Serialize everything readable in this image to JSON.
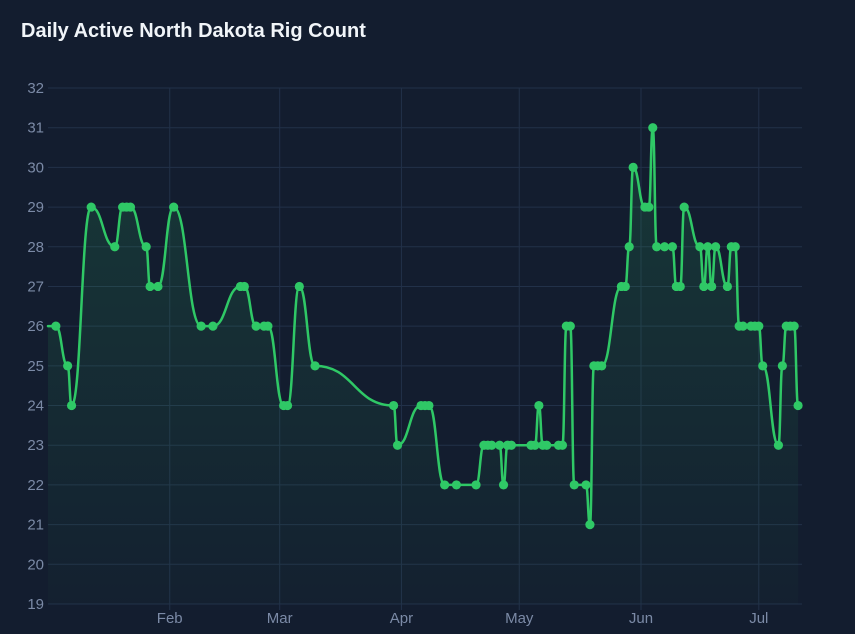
{
  "chart_data": {
    "type": "line",
    "title": "Daily Active North Dakota Rig Count",
    "xlabel": "",
    "ylabel": "",
    "ylim": [
      19,
      32
    ],
    "yticks": [
      19,
      20,
      21,
      22,
      23,
      24,
      25,
      26,
      27,
      28,
      29,
      30,
      31,
      32
    ],
    "xlim": [
      "2025-01-01",
      "2025-07-12"
    ],
    "xticks": [
      {
        "label": "Feb",
        "date": "2025-02-01"
      },
      {
        "label": "Mar",
        "date": "2025-03-01"
      },
      {
        "label": "Apr",
        "date": "2025-04-01"
      },
      {
        "label": "May",
        "date": "2025-05-01"
      },
      {
        "label": "Jun",
        "date": "2025-06-01"
      },
      {
        "label": "Jul",
        "date": "2025-07-01"
      }
    ],
    "grid": true,
    "legend": "none",
    "colors": {
      "line": "#2fc866",
      "point": "#2fc866",
      "grid": "#223149",
      "background": "#131d2f"
    },
    "series": [
      {
        "points": [
          [
            "2025-01-03",
            26
          ],
          [
            "2025-01-06",
            25
          ],
          [
            "2025-01-07",
            24
          ],
          [
            "2025-01-12",
            29
          ],
          [
            "2025-01-18",
            28
          ],
          [
            "2025-01-20",
            29
          ],
          [
            "2025-01-21",
            29
          ],
          [
            "2025-01-22",
            29
          ],
          [
            "2025-01-26",
            28
          ],
          [
            "2025-01-27",
            27
          ],
          [
            "2025-01-29",
            27
          ],
          [
            "2025-02-02",
            29
          ],
          [
            "2025-02-09",
            26
          ],
          [
            "2025-02-12",
            26
          ],
          [
            "2025-02-19",
            27
          ],
          [
            "2025-02-20",
            27
          ],
          [
            "2025-02-23",
            26
          ],
          [
            "2025-02-25",
            26
          ],
          [
            "2025-02-26",
            26
          ],
          [
            "2025-03-02",
            24
          ],
          [
            "2025-03-03",
            24
          ],
          [
            "2025-03-06",
            27
          ],
          [
            "2025-03-10",
            25
          ],
          [
            "2025-03-30",
            24
          ],
          [
            "2025-03-31",
            23
          ],
          [
            "2025-04-06",
            24
          ],
          [
            "2025-04-07",
            24
          ],
          [
            "2025-04-08",
            24
          ],
          [
            "2025-04-12",
            22
          ],
          [
            "2025-04-15",
            22
          ],
          [
            "2025-04-20",
            22
          ],
          [
            "2025-04-22",
            23
          ],
          [
            "2025-04-23",
            23
          ],
          [
            "2025-04-24",
            23
          ],
          [
            "2025-04-26",
            23
          ],
          [
            "2025-04-27",
            22
          ],
          [
            "2025-04-28",
            23
          ],
          [
            "2025-04-29",
            23
          ],
          [
            "2025-05-04",
            23
          ],
          [
            "2025-05-05",
            23
          ],
          [
            "2025-05-06",
            24
          ],
          [
            "2025-05-07",
            23
          ],
          [
            "2025-05-08",
            23
          ],
          [
            "2025-05-11",
            23
          ],
          [
            "2025-05-12",
            23
          ],
          [
            "2025-05-13",
            26
          ],
          [
            "2025-05-14",
            26
          ],
          [
            "2025-05-15",
            22
          ],
          [
            "2025-05-18",
            22
          ],
          [
            "2025-05-19",
            21
          ],
          [
            "2025-05-20",
            25
          ],
          [
            "2025-05-21",
            25
          ],
          [
            "2025-05-22",
            25
          ],
          [
            "2025-05-27",
            27
          ],
          [
            "2025-05-28",
            27
          ],
          [
            "2025-05-29",
            28
          ],
          [
            "2025-05-30",
            30
          ],
          [
            "2025-06-02",
            29
          ],
          [
            "2025-06-03",
            29
          ],
          [
            "2025-06-04",
            31
          ],
          [
            "2025-06-05",
            28
          ],
          [
            "2025-06-07",
            28
          ],
          [
            "2025-06-09",
            28
          ],
          [
            "2025-06-10",
            27
          ],
          [
            "2025-06-11",
            27
          ],
          [
            "2025-06-12",
            29
          ],
          [
            "2025-06-16",
            28
          ],
          [
            "2025-06-17",
            27
          ],
          [
            "2025-06-18",
            28
          ],
          [
            "2025-06-19",
            27
          ],
          [
            "2025-06-20",
            28
          ],
          [
            "2025-06-23",
            27
          ],
          [
            "2025-06-24",
            28
          ],
          [
            "2025-06-25",
            28
          ],
          [
            "2025-06-26",
            26
          ],
          [
            "2025-06-27",
            26
          ],
          [
            "2025-06-29",
            26
          ],
          [
            "2025-06-30",
            26
          ],
          [
            "2025-07-01",
            26
          ],
          [
            "2025-07-02",
            25
          ],
          [
            "2025-07-06",
            23
          ],
          [
            "2025-07-07",
            25
          ],
          [
            "2025-07-08",
            26
          ],
          [
            "2025-07-09",
            26
          ],
          [
            "2025-07-10",
            26
          ],
          [
            "2025-07-11",
            24
          ]
        ]
      }
    ]
  }
}
